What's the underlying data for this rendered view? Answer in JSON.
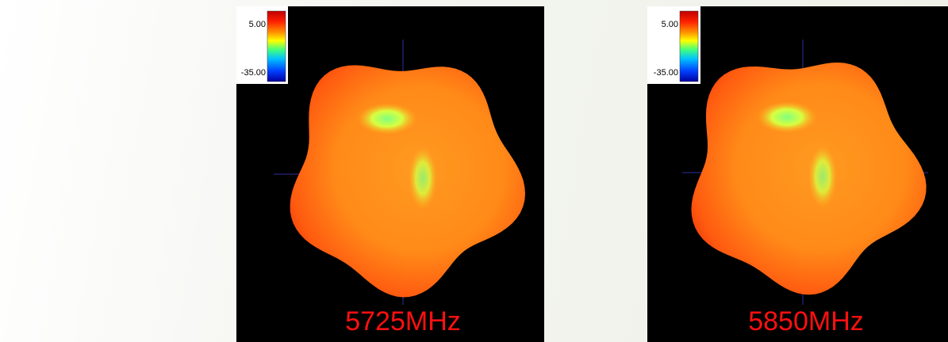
{
  "panels": [
    {
      "legend": {
        "max": "5.00",
        "min": "-35.00"
      },
      "label": "5725MHz"
    },
    {
      "legend": {
        "max": "5.00",
        "min": "-35.00"
      },
      "label": "5850MHz"
    }
  ]
}
